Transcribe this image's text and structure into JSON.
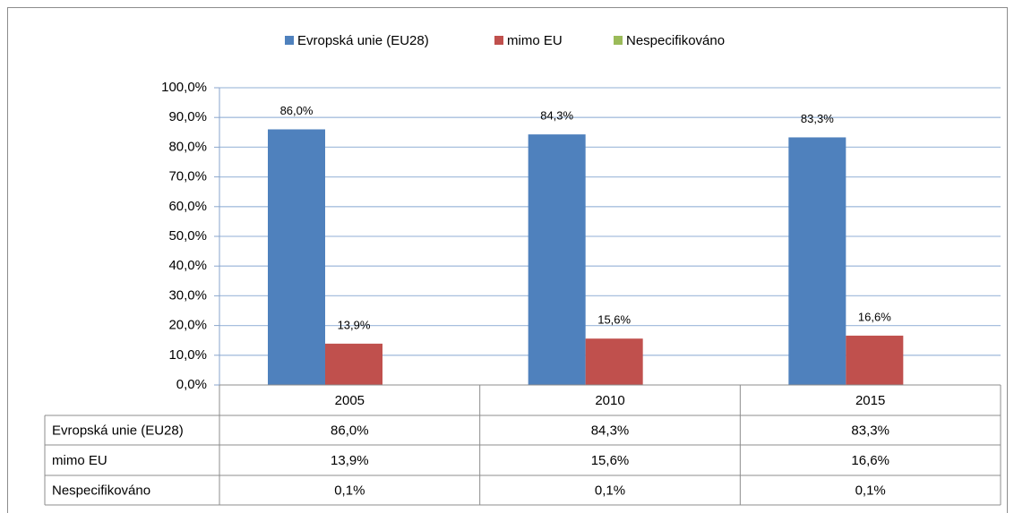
{
  "chart_data": {
    "type": "bar",
    "categories": [
      "2005",
      "2010",
      "2015"
    ],
    "series": [
      {
        "name": "Evropská unie (EU28)",
        "color": "#4f81bd",
        "values": [
          86.0,
          84.3,
          83.3
        ],
        "value_labels": [
          "86,0%",
          "84,3%",
          "83,3%"
        ],
        "show_labels": true
      },
      {
        "name": "mimo EU",
        "color": "#c0504d",
        "values": [
          13.9,
          15.6,
          16.6
        ],
        "value_labels": [
          "13,9%",
          "15,6%",
          "16,6%"
        ],
        "show_labels": true
      },
      {
        "name": "Nespecifikováno",
        "color": "#9bbb59",
        "values": [
          0.1,
          0.1,
          0.1
        ],
        "value_labels": [
          "0,1%",
          "0,1%",
          "0,1%"
        ],
        "show_labels": false
      }
    ],
    "ylim": [
      0,
      100
    ],
    "yticks": [
      {
        "value": 0,
        "label": "0,0%"
      },
      {
        "value": 10,
        "label": "10,0%"
      },
      {
        "value": 20,
        "label": "20,0%"
      },
      {
        "value": 30,
        "label": "30,0%"
      },
      {
        "value": 40,
        "label": "40,0%"
      },
      {
        "value": 50,
        "label": "50,0%"
      },
      {
        "value": 60,
        "label": "60,0%"
      },
      {
        "value": 70,
        "label": "70,0%"
      },
      {
        "value": 80,
        "label": "80,0%"
      },
      {
        "value": 90,
        "label": "90,0%"
      },
      {
        "value": 100,
        "label": "100,0%"
      }
    ],
    "grid": true,
    "legend": "top",
    "data_table": true
  }
}
